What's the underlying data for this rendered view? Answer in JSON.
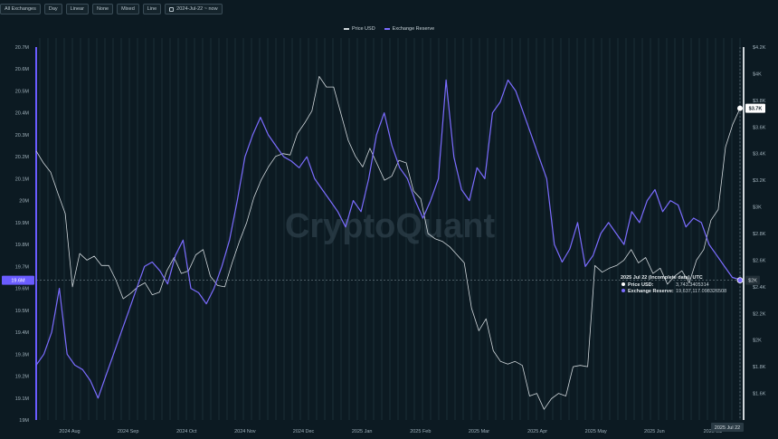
{
  "toolbar": {
    "buttons": [
      "All Exchanges",
      "Day",
      "Linear",
      "None",
      "Mixed",
      "Line"
    ],
    "date_range": "2024-Jul-22 ~ now"
  },
  "chart_data": {
    "type": "line",
    "title": "",
    "watermark": "CryptoQuant",
    "legend": [
      "Price USD",
      "Exchange Reserve"
    ],
    "legend_position": "top-center",
    "grid": true,
    "x_ticks": [
      "2024 Aug",
      "2024 Sep",
      "2024 Oct",
      "2024 Nov",
      "2024 Dec",
      "2025 Jan",
      "2025 Feb",
      "2025 Mar",
      "2025 Apr",
      "2025 May",
      "2025 Jun",
      "2025 Jul"
    ],
    "left_axis": {
      "ticks": [
        "20.7M",
        "20.6M",
        "20.5M",
        "20.4M",
        "20.3M",
        "20.2M",
        "20.1M",
        "20M",
        "19.9M",
        "19.8M",
        "19.7M",
        "19.6M",
        "19.5M",
        "19.4M",
        "19.3M",
        "19.2M",
        "19.1M",
        "19M"
      ],
      "ylim": [
        19000000,
        20700000
      ]
    },
    "right_axis": {
      "ticks": [
        "$4.2K",
        "$4K",
        "$3.8K",
        "$3.6K",
        "$3.4K",
        "$3.2K",
        "$3K",
        "$2.8K",
        "$2.6K",
        "$2.4K",
        "$2.2K",
        "$2K",
        "$1.8K",
        "$1.6K"
      ],
      "ylim": [
        1400,
        4200
      ]
    },
    "series": [
      {
        "name": "Price USD",
        "axis": "right",
        "color": "#cfd6da",
        "values": [
          3420,
          3330,
          3260,
          3100,
          2950,
          2400,
          2650,
          2600,
          2630,
          2560,
          2560,
          2450,
          2310,
          2350,
          2400,
          2430,
          2340,
          2360,
          2520,
          2620,
          2500,
          2520,
          2640,
          2680,
          2480,
          2410,
          2400,
          2580,
          2740,
          2880,
          3070,
          3200,
          3300,
          3380,
          3400,
          3390,
          3550,
          3630,
          3720,
          3980,
          3900,
          3900,
          3700,
          3500,
          3380,
          3300,
          3440,
          3320,
          3200,
          3230,
          3350,
          3330,
          3120,
          3060,
          2800,
          2760,
          2740,
          2700,
          2640,
          2580,
          2240,
          2070,
          2160,
          1920,
          1840,
          1820,
          1840,
          1810,
          1580,
          1600,
          1480,
          1560,
          1600,
          1580,
          1800,
          1810,
          1800,
          2560,
          2510,
          2540,
          2560,
          2600,
          2680,
          2580,
          2620,
          2500,
          2540,
          2420,
          2480,
          2520,
          2430,
          2600,
          2680,
          2900,
          2980,
          3450,
          3620,
          3740
        ]
      },
      {
        "name": "Exchange Reserve",
        "axis": "left",
        "color": "#7b6cff",
        "values": [
          19250000,
          19300000,
          19400000,
          19600000,
          19300000,
          19250000,
          19230000,
          19180000,
          19100000,
          19200000,
          19300000,
          19400000,
          19500000,
          19600000,
          19700000,
          19720000,
          19680000,
          19620000,
          19750000,
          19820000,
          19600000,
          19580000,
          19530000,
          19600000,
          19700000,
          19820000,
          20000000,
          20200000,
          20300000,
          20380000,
          20300000,
          20250000,
          20200000,
          20180000,
          20150000,
          20200000,
          20100000,
          20050000,
          20000000,
          19950000,
          19880000,
          20000000,
          19950000,
          20100000,
          20300000,
          20400000,
          20250000,
          20150000,
          20100000,
          20000000,
          19920000,
          20000000,
          20100000,
          20550000,
          20200000,
          20050000,
          20000000,
          20150000,
          20100000,
          20400000,
          20450000,
          20550000,
          20500000,
          20400000,
          20300000,
          20200000,
          20100000,
          19800000,
          19720000,
          19780000,
          19900000,
          19700000,
          19750000,
          19850000,
          19900000,
          19850000,
          19800000,
          19950000,
          19900000,
          20000000,
          20050000,
          19950000,
          20000000,
          19980000,
          19880000,
          19920000,
          19900000,
          19800000,
          19750000,
          19700000,
          19650000,
          19640000
        ]
      }
    ],
    "price_label": "$3.7K",
    "left_axis_marker": "19.6M",
    "right_axis_marker": "$2K",
    "bottom_date_marker": "2025 Jul 22",
    "tooltip": {
      "title": "2025 Jul 22 (Incomplete data), UTC",
      "rows": [
        {
          "label": "Price USD",
          "value": "3,743.3405314",
          "color": "#ffffff"
        },
        {
          "label": "Exchange Reserve",
          "value": "19,637,117.098326508",
          "color": "#7b6cff"
        }
      ]
    }
  }
}
